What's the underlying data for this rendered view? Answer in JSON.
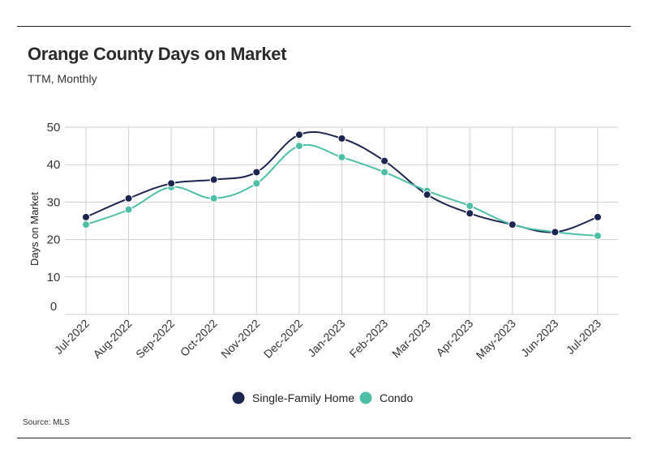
{
  "title": "Orange County Days on Market",
  "subtitle": "TTM, Monthly",
  "source": "Source:  MLS",
  "colors": {
    "single_family": "#1b2550",
    "condo": "#4dbfa6",
    "grid": "#cfcfcf"
  },
  "chart_data": {
    "type": "line",
    "title": "Orange County Days on Market",
    "subtitle": "TTM, Monthly",
    "xlabel": "",
    "ylabel": "Days on Market",
    "ylim": [
      0,
      50
    ],
    "yticks": [
      0,
      10,
      20,
      30,
      40,
      50
    ],
    "grid": true,
    "legend": "bottom-center",
    "categories": [
      "Jul-2022",
      "Aug-2022",
      "Sep-2022",
      "Oct-2022",
      "Nov-2022",
      "Dec-2022",
      "Jan-2023",
      "Feb-2023",
      "Mar-2023",
      "Apr-2023",
      "May-2023",
      "Jun-2023",
      "Jul-2023"
    ],
    "series": [
      {
        "name": "Single-Family Home",
        "color": "#1b2550",
        "values": [
          26,
          31,
          35,
          36,
          38,
          48,
          47,
          41,
          32,
          27,
          24,
          22,
          26
        ]
      },
      {
        "name": "Condo",
        "color": "#4dbfa6",
        "values": [
          24,
          28,
          34,
          31,
          35,
          45,
          42,
          38,
          33,
          29,
          24,
          22,
          21
        ]
      }
    ]
  }
}
